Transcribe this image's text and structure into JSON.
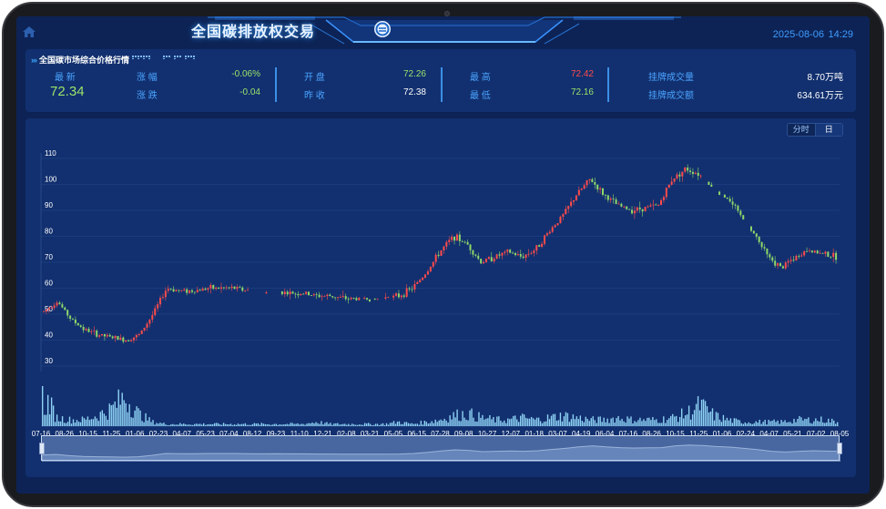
{
  "header": {
    "title": "全国碳排放权交易",
    "date": "2025-08-06",
    "time": "14:29"
  },
  "quote": {
    "panel_title": "全国碳市场综合价格行情",
    "latest_label": "最  新",
    "latest_value": "72.34",
    "change_pct_label": "涨  幅",
    "change_pct_value": "-0.06%",
    "change_label": "涨  跌",
    "change_value": "-0.04",
    "open_label": "开  盘",
    "open_value": "72.26",
    "prev_close_label": "昨  收",
    "prev_close_value": "72.38",
    "high_label": "最  高",
    "high_value": "72.42",
    "low_label": "最  低",
    "low_value": "72.16",
    "volume_label": "挂牌成交量",
    "volume_value": "8.70万吨",
    "amount_label": "挂牌成交额",
    "amount_value": "634.61万元"
  },
  "toggle": {
    "intraday": "分时",
    "daily": "日"
  },
  "colors": {
    "up": "#ff4b4b",
    "down": "#8ed86a",
    "volume": "#8fd3f5",
    "accent": "#3f9dff"
  },
  "chart_data": {
    "type": "candlestick",
    "y_ticks": [
      "110",
      "100",
      "90",
      "80",
      "70",
      "60",
      "50",
      "40",
      "30"
    ],
    "ylim": [
      30,
      110
    ],
    "x_ticks": [
      "07-16",
      "08-26",
      "10-15",
      "11-25",
      "01-06",
      "02-23",
      "04-07",
      "05-23",
      "07-04",
      "08-12",
      "09-23",
      "11-10",
      "12-21",
      "02-08",
      "03-21",
      "05-05",
      "06-15",
      "07-28",
      "09-08",
      "10-27",
      "12-07",
      "01-18",
      "03-07",
      "04-19",
      "06-04",
      "07-16",
      "08-26",
      "10-15",
      "11-25",
      "01-06",
      "02-24",
      "04-07",
      "05-21",
      "07-02",
      "08-05"
    ],
    "price_path": [
      51,
      55,
      48,
      44,
      42,
      41,
      40,
      42,
      50,
      60,
      59,
      59,
      60,
      60,
      60,
      59,
      58,
      59,
      58,
      58,
      57,
      57,
      56,
      56,
      56,
      56,
      57,
      60,
      66,
      74,
      80,
      77,
      70,
      72,
      74,
      72,
      75,
      82,
      88,
      96,
      102,
      96,
      92,
      90,
      91,
      92,
      102,
      106,
      104,
      98,
      95,
      88,
      81,
      72,
      68,
      72,
      75,
      73,
      72
    ],
    "volume_profile": [
      18,
      4,
      3,
      3,
      5,
      8,
      14,
      6,
      2,
      1,
      1,
      1,
      1,
      1,
      1,
      1,
      1,
      1,
      1,
      1,
      2,
      1,
      1,
      1,
      1,
      1,
      2,
      1,
      2,
      3,
      5,
      6,
      4,
      3,
      3,
      4,
      3,
      4,
      5,
      4,
      3,
      3,
      4,
      3,
      3,
      3,
      4,
      6,
      10,
      5,
      3,
      2,
      2,
      2,
      2,
      3,
      3,
      3,
      2
    ]
  }
}
